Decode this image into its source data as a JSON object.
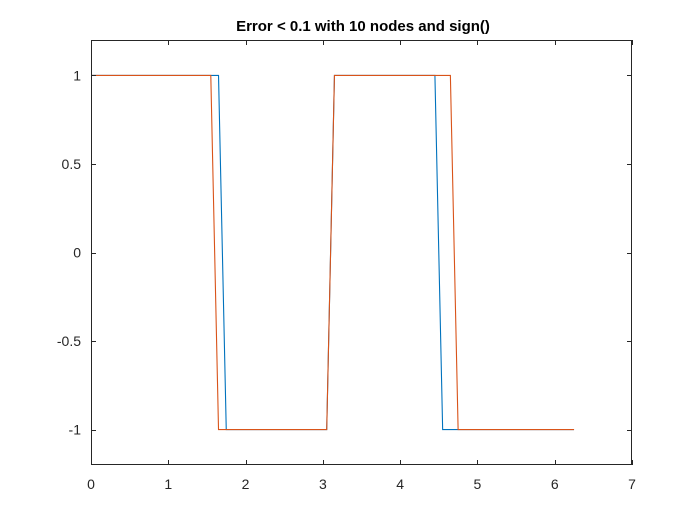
{
  "chart_data": {
    "type": "line",
    "title": "Error < 0.1 with 10 nodes and sign()",
    "xlabel": "",
    "ylabel": "",
    "xlim": [
      0,
      7
    ],
    "ylim": [
      -1.2,
      1.2
    ],
    "xticks": [
      0,
      1,
      2,
      3,
      4,
      5,
      6,
      7
    ],
    "yticks": [
      -1,
      -0.5,
      0,
      0.5,
      1
    ],
    "xtick_labels": [
      "0",
      "1",
      "2",
      "3",
      "4",
      "5",
      "6",
      "7"
    ],
    "ytick_labels": [
      "-1",
      "-0.5",
      "0",
      "0.5",
      "1"
    ],
    "grid": false,
    "box": true,
    "series": [
      {
        "color": "#0072BD",
        "x": [
          0,
          1.6,
          1.65,
          1.75,
          3.05,
          3.15,
          4.45,
          4.55,
          6.25
        ],
        "y": [
          1,
          1,
          1,
          -1,
          -1,
          1,
          1,
          -1,
          -1
        ]
      },
      {
        "color": "#D95319",
        "x": [
          0,
          1.55,
          1.65,
          3.05,
          3.15,
          4.65,
          4.75,
          6.25
        ],
        "y": [
          1,
          1,
          -1,
          -1,
          1,
          1,
          -1,
          -1
        ]
      }
    ]
  }
}
